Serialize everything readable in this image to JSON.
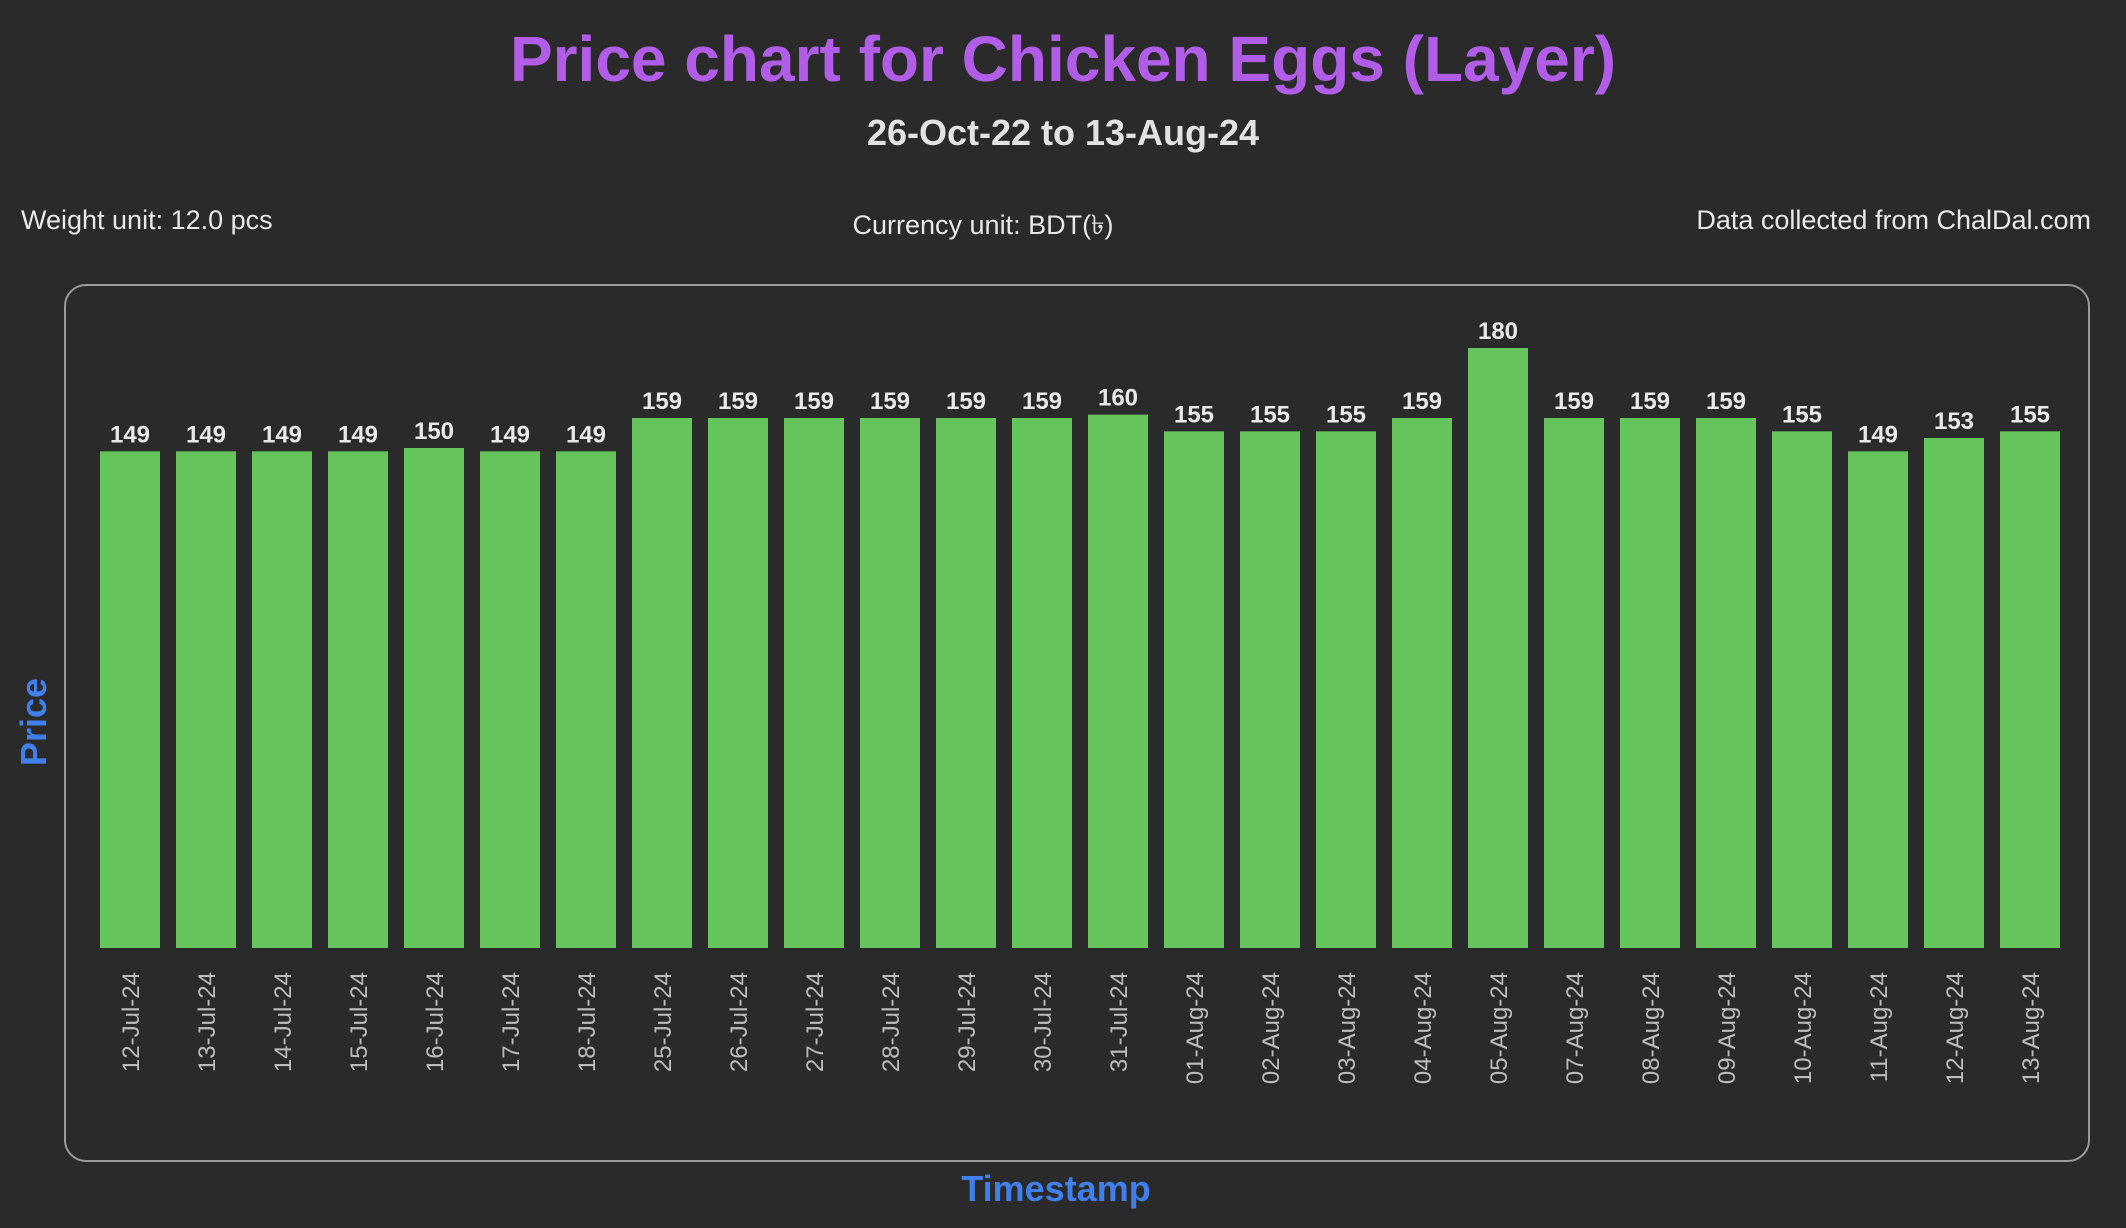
{
  "header": {
    "title": "Price chart for Chicken Eggs (Layer)",
    "subtitle": "26-Oct-22 to 13-Aug-24"
  },
  "info": {
    "weight": "Weight unit: 12.0 pcs",
    "currency": "Currency unit: BDT(৳)",
    "source": "Data collected from ChalDal.com"
  },
  "colors": {
    "bar": "#66c45c",
    "title": "#b25de8",
    "axis_label": "#3f80ec",
    "background": "#2a2a2a"
  },
  "chart_data": {
    "type": "bar",
    "title": "Price chart for Chicken Eggs (Layer)",
    "subtitle": "26-Oct-22 to 13-Aug-24",
    "xlabel": "Timestamp",
    "ylabel": "Price",
    "grid": false,
    "legend": "none",
    "ylim": [
      0,
      180
    ],
    "categories": [
      "12-Jul-24",
      "13-Jul-24",
      "14-Jul-24",
      "15-Jul-24",
      "16-Jul-24",
      "17-Jul-24",
      "18-Jul-24",
      "25-Jul-24",
      "26-Jul-24",
      "27-Jul-24",
      "28-Jul-24",
      "29-Jul-24",
      "30-Jul-24",
      "31-Jul-24",
      "01-Aug-24",
      "02-Aug-24",
      "03-Aug-24",
      "04-Aug-24",
      "05-Aug-24",
      "07-Aug-24",
      "08-Aug-24",
      "09-Aug-24",
      "10-Aug-24",
      "11-Aug-24",
      "12-Aug-24",
      "13-Aug-24"
    ],
    "values": [
      149,
      149,
      149,
      149,
      150,
      149,
      149,
      159,
      159,
      159,
      159,
      159,
      159,
      160,
      155,
      155,
      155,
      159,
      180,
      159,
      159,
      159,
      155,
      149,
      153,
      155
    ]
  }
}
